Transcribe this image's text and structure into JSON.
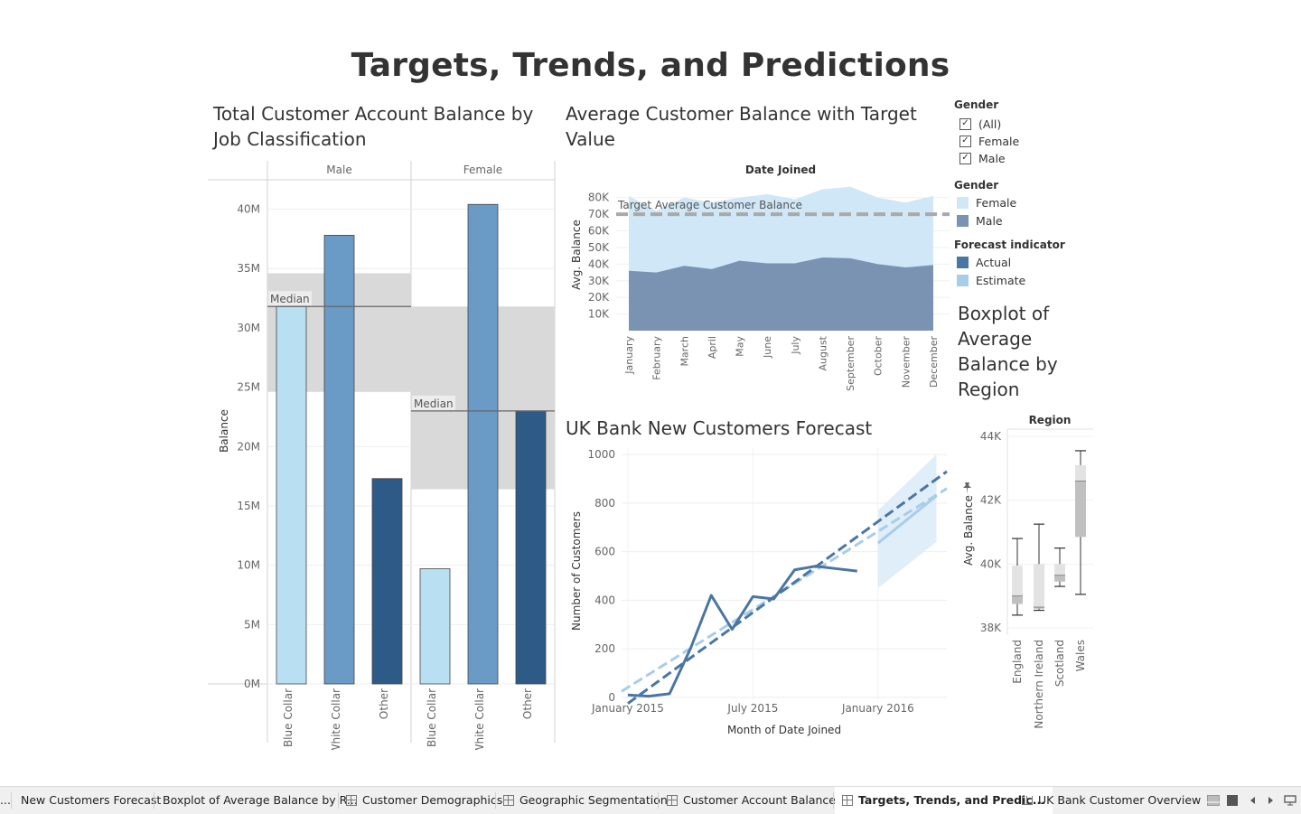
{
  "dashboard": {
    "title": "Targets, Trends, and Predictions"
  },
  "worksheets": {
    "balance_by_job": {
      "title": "Total Customer Account Balance by Job Classification"
    },
    "avg_balance_target": {
      "title": "Average Customer Balance with Target Value"
    },
    "new_customers": {
      "title": "UK Bank New Customers Forecast"
    },
    "boxplot": {
      "title": "Boxplot of Average Balance by Region"
    }
  },
  "filters": {
    "gender_filter": {
      "title": "Gender",
      "options": [
        {
          "label": "(All)",
          "checked": true
        },
        {
          "label": "Female",
          "checked": true
        },
        {
          "label": "Male",
          "checked": true
        }
      ]
    }
  },
  "legends": {
    "gender": {
      "title": "Gender",
      "items": [
        {
          "label": "Female",
          "color": "#cfe7f6"
        },
        {
          "label": "Male",
          "color": "#7b93b3"
        }
      ]
    },
    "forecast": {
      "title": "Forecast indicator",
      "items": [
        {
          "label": "Actual",
          "color": "#4a76a3"
        },
        {
          "label": "Estimate",
          "color": "#a8cde9"
        }
      ]
    }
  },
  "chart_data": [
    {
      "id": "bars",
      "type": "bar",
      "title": "Total Customer Account Balance by Job Classification",
      "ylabel": "Balance",
      "panels": [
        "Male",
        "Female"
      ],
      "categories": [
        "Blue Collar",
        "White Collar",
        "Other"
      ],
      "series": [
        {
          "name": "Male",
          "values": [
            31.8,
            37.8,
            17.3
          ]
        },
        {
          "name": "Female",
          "values": [
            9.7,
            40.4,
            23.0
          ]
        }
      ],
      "unit": "M",
      "colors": [
        "#b9dff3",
        "#6a9bc6",
        "#2d5a87"
      ],
      "ylim": [
        0,
        43
      ],
      "yticks": [
        0,
        5,
        10,
        15,
        20,
        25,
        30,
        35,
        40
      ],
      "ytick_labels": [
        "0M",
        "5M",
        "10M",
        "15M",
        "20M",
        "25M",
        "30M",
        "35M",
        "40M"
      ],
      "reference_line_label": "Median",
      "medians": [
        31.8,
        23.0
      ],
      "bands": [
        [
          24.6,
          34.6
        ],
        [
          16.4,
          31.8
        ]
      ],
      "band_color": "#d9d9d9"
    },
    {
      "id": "area",
      "type": "area",
      "title": "Average Customer Balance with Target Value",
      "header": "Date Joined",
      "ylabel": "Avg. Balance",
      "categories": [
        "January",
        "February",
        "March",
        "April",
        "May",
        "June",
        "July",
        "August",
        "September",
        "October",
        "November",
        "December"
      ],
      "series": [
        {
          "name": "Male",
          "values": [
            36000,
            35000,
            39000,
            37000,
            42000,
            40500,
            40500,
            44000,
            43500,
            40000,
            38000,
            39500
          ],
          "color": "#7b93b3"
        },
        {
          "name": "Female",
          "values": [
            81000,
            72000,
            80000,
            77000,
            80000,
            82000,
            79000,
            85000,
            86500,
            80000,
            77000,
            81000
          ],
          "color": "#cfe7f6"
        }
      ],
      "ylim": [
        0,
        88000
      ],
      "yticks": [
        10000,
        20000,
        30000,
        40000,
        50000,
        60000,
        70000,
        80000
      ],
      "ytick_labels": [
        "10K",
        "20K",
        "30K",
        "40K",
        "50K",
        "60K",
        "70K",
        "80K"
      ],
      "target_value": 70000,
      "target_label": "Target Average Customer Balance"
    },
    {
      "id": "forecast",
      "type": "line",
      "title": "UK Bank New Customers Forecast",
      "xlabel": "Month of Date Joined",
      "ylabel": "Number of Customers",
      "x_tick_labels": [
        "January 2015",
        "July 2015",
        "January 2016"
      ],
      "x_tick_months": [
        0,
        6,
        12
      ],
      "xlim": [
        -0.3,
        15.3
      ],
      "ylim": [
        -30,
        1030
      ],
      "yticks": [
        0,
        200,
        400,
        600,
        800,
        1000
      ],
      "actual": {
        "months": [
          0,
          1,
          2,
          3,
          4,
          5,
          6,
          7,
          8,
          9,
          10,
          11
        ],
        "values": [
          10,
          5,
          15,
          200,
          420,
          280,
          415,
          405,
          525,
          540,
          530,
          520
        ]
      },
      "trend_actual": {
        "x": [
          0,
          15.3
        ],
        "y": [
          -25,
          930
        ]
      },
      "trend_estimate": {
        "x": [
          -0.3,
          15.3
        ],
        "y": [
          25,
          860
        ]
      },
      "estimate": {
        "months": [
          12,
          14.8
        ],
        "values": [
          635,
          830
        ]
      },
      "band": {
        "x": [
          12,
          14.8
        ],
        "upper": [
          770,
          1000
        ],
        "lower": [
          450,
          640
        ]
      }
    },
    {
      "id": "boxplot",
      "type": "boxplot",
      "title": "Boxplot of Average Balance by Region",
      "header": "Region",
      "ylabel": "Avg. Balance",
      "categories": [
        "England",
        "Northern Ireland",
        "Scotland",
        "Wales"
      ],
      "ylim": [
        37700,
        44300
      ],
      "yticks": [
        38000,
        40000,
        42000,
        44000
      ],
      "ytick_labels": [
        "38K",
        "40K",
        "42K",
        "44K"
      ],
      "boxes": [
        {
          "min": 38400,
          "q1": 38750,
          "median": 39000,
          "q3": 39950,
          "max": 40800
        },
        {
          "min": 38550,
          "q1": 38600,
          "median": 38650,
          "q3": 40000,
          "max": 41250
        },
        {
          "min": 39300,
          "q1": 39450,
          "median": 39650,
          "q3": 40000,
          "max": 40500
        },
        {
          "min": 39050,
          "q1": 40850,
          "median": 42600,
          "q3": 43100,
          "max": 43550
        }
      ]
    }
  ],
  "tabs": [
    {
      "label": "...",
      "icon": "",
      "active": false
    },
    {
      "label": "New Customers Forecast",
      "icon": "",
      "active": false
    },
    {
      "label": "Boxplot of Average Balance by R...",
      "icon": "",
      "active": false
    },
    {
      "label": "Customer Demographics",
      "icon": "grid-icon",
      "active": false
    },
    {
      "label": "Geographic Segmentation",
      "icon": "grid-icon",
      "active": false
    },
    {
      "label": "Customer Account Balances",
      "icon": "grid-icon",
      "active": false
    },
    {
      "label": "Targets, Trends, and Predic...",
      "icon": "grid-icon",
      "active": true
    },
    {
      "label": "UK Bank Customer Overview",
      "icon": "book-icon",
      "active": false
    }
  ]
}
